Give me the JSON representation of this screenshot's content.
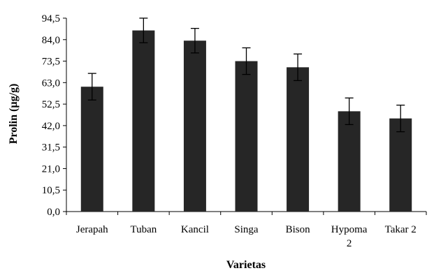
{
  "chart_data": {
    "type": "bar",
    "title": "",
    "xlabel": "Varietas",
    "ylabel": "Prolin (µg/g)",
    "ylim": [
      0,
      94.5
    ],
    "yticks": [
      "0,0",
      "10,5",
      "21,0",
      "31,5",
      "42,0",
      "52,5",
      "63,0",
      "73,5",
      "84,0",
      "94,5"
    ],
    "categories": [
      "Jerapah",
      "Tuban",
      "Kancil",
      "Singa",
      "Bison",
      "Hypoma 2",
      "Takar 2"
    ],
    "category_lines": [
      [
        "Jerapah"
      ],
      [
        "Tuban"
      ],
      [
        "Kancil"
      ],
      [
        "Singa"
      ],
      [
        "Bison"
      ],
      [
        "Hypoma",
        "2"
      ],
      [
        "Takar 2"
      ]
    ],
    "values": [
      61.0,
      88.5,
      83.5,
      73.5,
      70.5,
      49.0,
      45.5
    ],
    "errors": [
      6.5,
      6.0,
      6.0,
      6.5,
      6.5,
      6.5,
      6.5
    ],
    "bar_color": "#262626",
    "grid": false,
    "legend": "none"
  }
}
